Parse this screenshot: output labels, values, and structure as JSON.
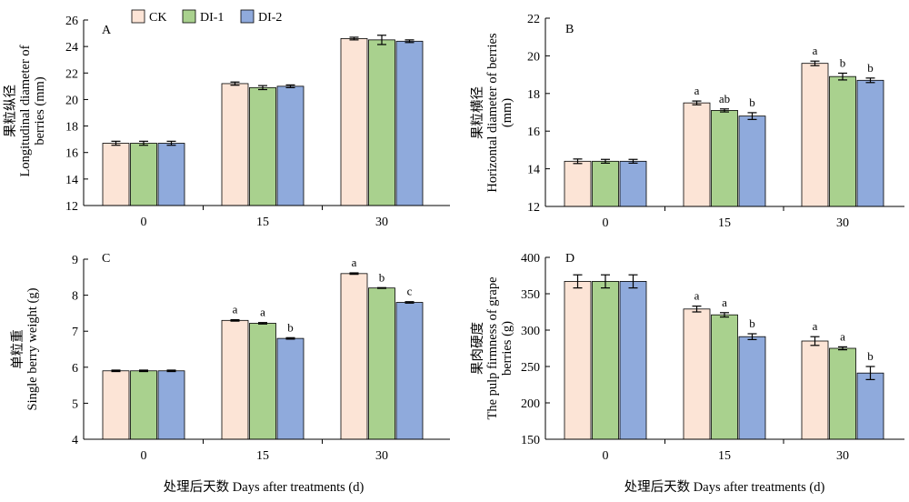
{
  "legend": [
    {
      "name": "CK",
      "color": "#fce4d6"
    },
    {
      "name": "DI-1",
      "color": "#a9d18e"
    },
    {
      "name": "DI-2",
      "color": "#8faadc"
    }
  ],
  "xlabel_left": "处理后天数 Days after treatments (d)",
  "xlabel_right": "处理后天数 Days after treatments (d)",
  "chart_data": [
    {
      "type": "bar",
      "panel": "A",
      "categories": [
        "0",
        "15",
        "30"
      ],
      "ylabel": [
        "果粒纵径",
        "Longitudinal diameter of",
        "berries (mm)"
      ],
      "ylim": [
        12,
        26
      ],
      "yticks": [
        "12",
        "14",
        "16",
        "18",
        "20",
        "22",
        "24",
        "26"
      ],
      "series": [
        {
          "name": "CK",
          "values": [
            16.7,
            21.2,
            24.6
          ],
          "err": [
            0.15,
            0.12,
            0.1
          ],
          "letters": [
            "",
            "",
            ""
          ]
        },
        {
          "name": "DI-1",
          "values": [
            16.7,
            20.9,
            24.5
          ],
          "err": [
            0.15,
            0.15,
            0.35
          ],
          "letters": [
            "",
            "",
            ""
          ]
        },
        {
          "name": "DI-2",
          "values": [
            16.7,
            21.0,
            24.4
          ],
          "err": [
            0.15,
            0.1,
            0.1
          ],
          "letters": [
            "",
            "",
            ""
          ]
        }
      ]
    },
    {
      "type": "bar",
      "panel": "B",
      "categories": [
        "0",
        "15",
        "30"
      ],
      "ylabel": [
        "果粒横径",
        "Horizontal diameter of berries",
        "(mm)"
      ],
      "ylim": [
        12,
        22
      ],
      "yticks": [
        "12",
        "14",
        "16",
        "18",
        "20",
        "22"
      ],
      "series": [
        {
          "name": "CK",
          "values": [
            14.4,
            17.5,
            19.6
          ],
          "err": [
            0.12,
            0.1,
            0.12
          ],
          "letters": [
            "",
            "a",
            "a"
          ]
        },
        {
          "name": "DI-1",
          "values": [
            14.4,
            17.1,
            18.9
          ],
          "err": [
            0.1,
            0.08,
            0.18
          ],
          "letters": [
            "",
            "ab",
            "b"
          ]
        },
        {
          "name": "DI-2",
          "values": [
            14.4,
            16.8,
            18.7
          ],
          "err": [
            0.1,
            0.18,
            0.12
          ],
          "letters": [
            "",
            "b",
            "b"
          ]
        }
      ]
    },
    {
      "type": "bar",
      "panel": "C",
      "categories": [
        "0",
        "15",
        "30"
      ],
      "ylabel": [
        "单粒重",
        "Single berry weight (g)"
      ],
      "ylim": [
        4,
        9
      ],
      "yticks": [
        "4",
        "5",
        "6",
        "7",
        "8",
        "9"
      ],
      "series": [
        {
          "name": "CK",
          "values": [
            5.9,
            7.3,
            8.6
          ],
          "err": [
            0.02,
            0.02,
            0.02
          ],
          "letters": [
            "",
            "a",
            "a"
          ]
        },
        {
          "name": "DI-1",
          "values": [
            5.9,
            7.22,
            8.2
          ],
          "err": [
            0.02,
            0.02,
            0.01
          ],
          "letters": [
            "",
            "a",
            "b"
          ]
        },
        {
          "name": "DI-2",
          "values": [
            5.9,
            6.8,
            7.8
          ],
          "err": [
            0.02,
            0.02,
            0.02
          ],
          "letters": [
            "",
            "b",
            "c"
          ]
        }
      ]
    },
    {
      "type": "bar",
      "panel": "D",
      "categories": [
        "0",
        "15",
        "30"
      ],
      "ylabel": [
        "果肉硬度",
        "The pulp firmness  of grape",
        "berries (g)"
      ],
      "ylim": [
        150,
        400
      ],
      "yticks": [
        "150",
        "200",
        "250",
        "300",
        "350",
        "400"
      ],
      "series": [
        {
          "name": "CK",
          "values": [
            367,
            329,
            285
          ],
          "err": [
            9,
            4,
            6
          ],
          "letters": [
            "",
            "a",
            "a"
          ]
        },
        {
          "name": "DI-1",
          "values": [
            367,
            321,
            275
          ],
          "err": [
            9,
            3,
            2
          ],
          "letters": [
            "",
            "a",
            "a"
          ]
        },
        {
          "name": "DI-2",
          "values": [
            367,
            291,
            241
          ],
          "err": [
            9,
            4,
            9
          ],
          "letters": [
            "",
            "b",
            "b"
          ]
        }
      ]
    }
  ]
}
